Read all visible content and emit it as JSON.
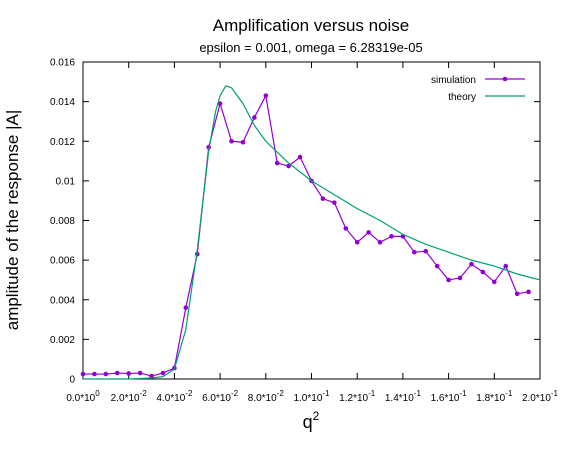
{
  "chart_data": {
    "type": "line",
    "title": "Amplification versus noise",
    "subtitle": "epsilon = 0.001, omega = 6.28319e-05",
    "xlabel": "q",
    "xlabel_superscript": "2",
    "ylabel": "amplitude of the response |A|",
    "xlim": [
      0,
      0.2
    ],
    "ylim": [
      0,
      0.016
    ],
    "grid": false,
    "legend_position": "top-right",
    "x_ticks": [
      {
        "value": 0.0,
        "mantissa": "0.0",
        "exponent": "0"
      },
      {
        "value": 0.02,
        "mantissa": "2.0",
        "exponent": "-2"
      },
      {
        "value": 0.04,
        "mantissa": "4.0",
        "exponent": "-2"
      },
      {
        "value": 0.06,
        "mantissa": "6.0",
        "exponent": "-2"
      },
      {
        "value": 0.08,
        "mantissa": "8.0",
        "exponent": "-2"
      },
      {
        "value": 0.1,
        "mantissa": "1.0",
        "exponent": "-1"
      },
      {
        "value": 0.12,
        "mantissa": "1.2",
        "exponent": "-1"
      },
      {
        "value": 0.14,
        "mantissa": "1.4",
        "exponent": "-1"
      },
      {
        "value": 0.16,
        "mantissa": "1.6",
        "exponent": "-1"
      },
      {
        "value": 0.18,
        "mantissa": "1.8",
        "exponent": "-1"
      },
      {
        "value": 0.2,
        "mantissa": "2.0",
        "exponent": "-1"
      }
    ],
    "y_ticks": [
      {
        "value": 0,
        "label": "0"
      },
      {
        "value": 0.002,
        "label": "0.002"
      },
      {
        "value": 0.004,
        "label": "0.004"
      },
      {
        "value": 0.006,
        "label": "0.006"
      },
      {
        "value": 0.008,
        "label": "0.008"
      },
      {
        "value": 0.01,
        "label": "0.01"
      },
      {
        "value": 0.012,
        "label": "0.012"
      },
      {
        "value": 0.014,
        "label": "0.014"
      },
      {
        "value": 0.016,
        "label": "0.016"
      }
    ],
    "series": [
      {
        "name": "simulation",
        "color": "#9400d3",
        "style": "linespoints",
        "x": [
          0.0,
          0.005,
          0.01,
          0.015,
          0.02,
          0.025,
          0.03,
          0.035,
          0.04,
          0.045,
          0.05,
          0.055,
          0.06,
          0.065,
          0.07,
          0.075,
          0.08,
          0.085,
          0.09,
          0.095,
          0.1,
          0.105,
          0.11,
          0.115,
          0.12,
          0.125,
          0.13,
          0.135,
          0.14,
          0.145,
          0.15,
          0.155,
          0.16,
          0.165,
          0.17,
          0.175,
          0.18,
          0.185,
          0.19,
          0.195
        ],
        "y": [
          0.00025,
          0.00025,
          0.00025,
          0.0003,
          0.00028,
          0.0003,
          0.00015,
          0.0003,
          0.00055,
          0.0036,
          0.0063,
          0.0117,
          0.0139,
          0.012,
          0.01195,
          0.0132,
          0.0143,
          0.0109,
          0.01075,
          0.0112,
          0.01,
          0.0091,
          0.0089,
          0.0076,
          0.0069,
          0.0074,
          0.0069,
          0.0072,
          0.0072,
          0.0064,
          0.00645,
          0.0057,
          0.005,
          0.0051,
          0.0058,
          0.0054,
          0.0049,
          0.0057,
          0.0043,
          0.0044
        ]
      },
      {
        "name": "theory",
        "color": "#009e73",
        "style": "lines",
        "x": [
          0.0,
          0.01,
          0.02,
          0.03,
          0.035,
          0.04,
          0.045,
          0.05,
          0.055,
          0.058,
          0.06,
          0.0625,
          0.065,
          0.07,
          0.075,
          0.08,
          0.09,
          0.1,
          0.11,
          0.12,
          0.13,
          0.14,
          0.15,
          0.16,
          0.17,
          0.18,
          0.19,
          0.2
        ],
        "y": [
          0.0,
          0.0,
          0.0,
          5e-05,
          0.00012,
          0.0005,
          0.0025,
          0.0065,
          0.0115,
          0.0135,
          0.0143,
          0.0148,
          0.0147,
          0.0139,
          0.0128,
          0.012,
          0.0109,
          0.01,
          0.0093,
          0.0086,
          0.008,
          0.0073,
          0.0068,
          0.0064,
          0.006,
          0.0057,
          0.0053,
          0.005
        ]
      }
    ]
  }
}
